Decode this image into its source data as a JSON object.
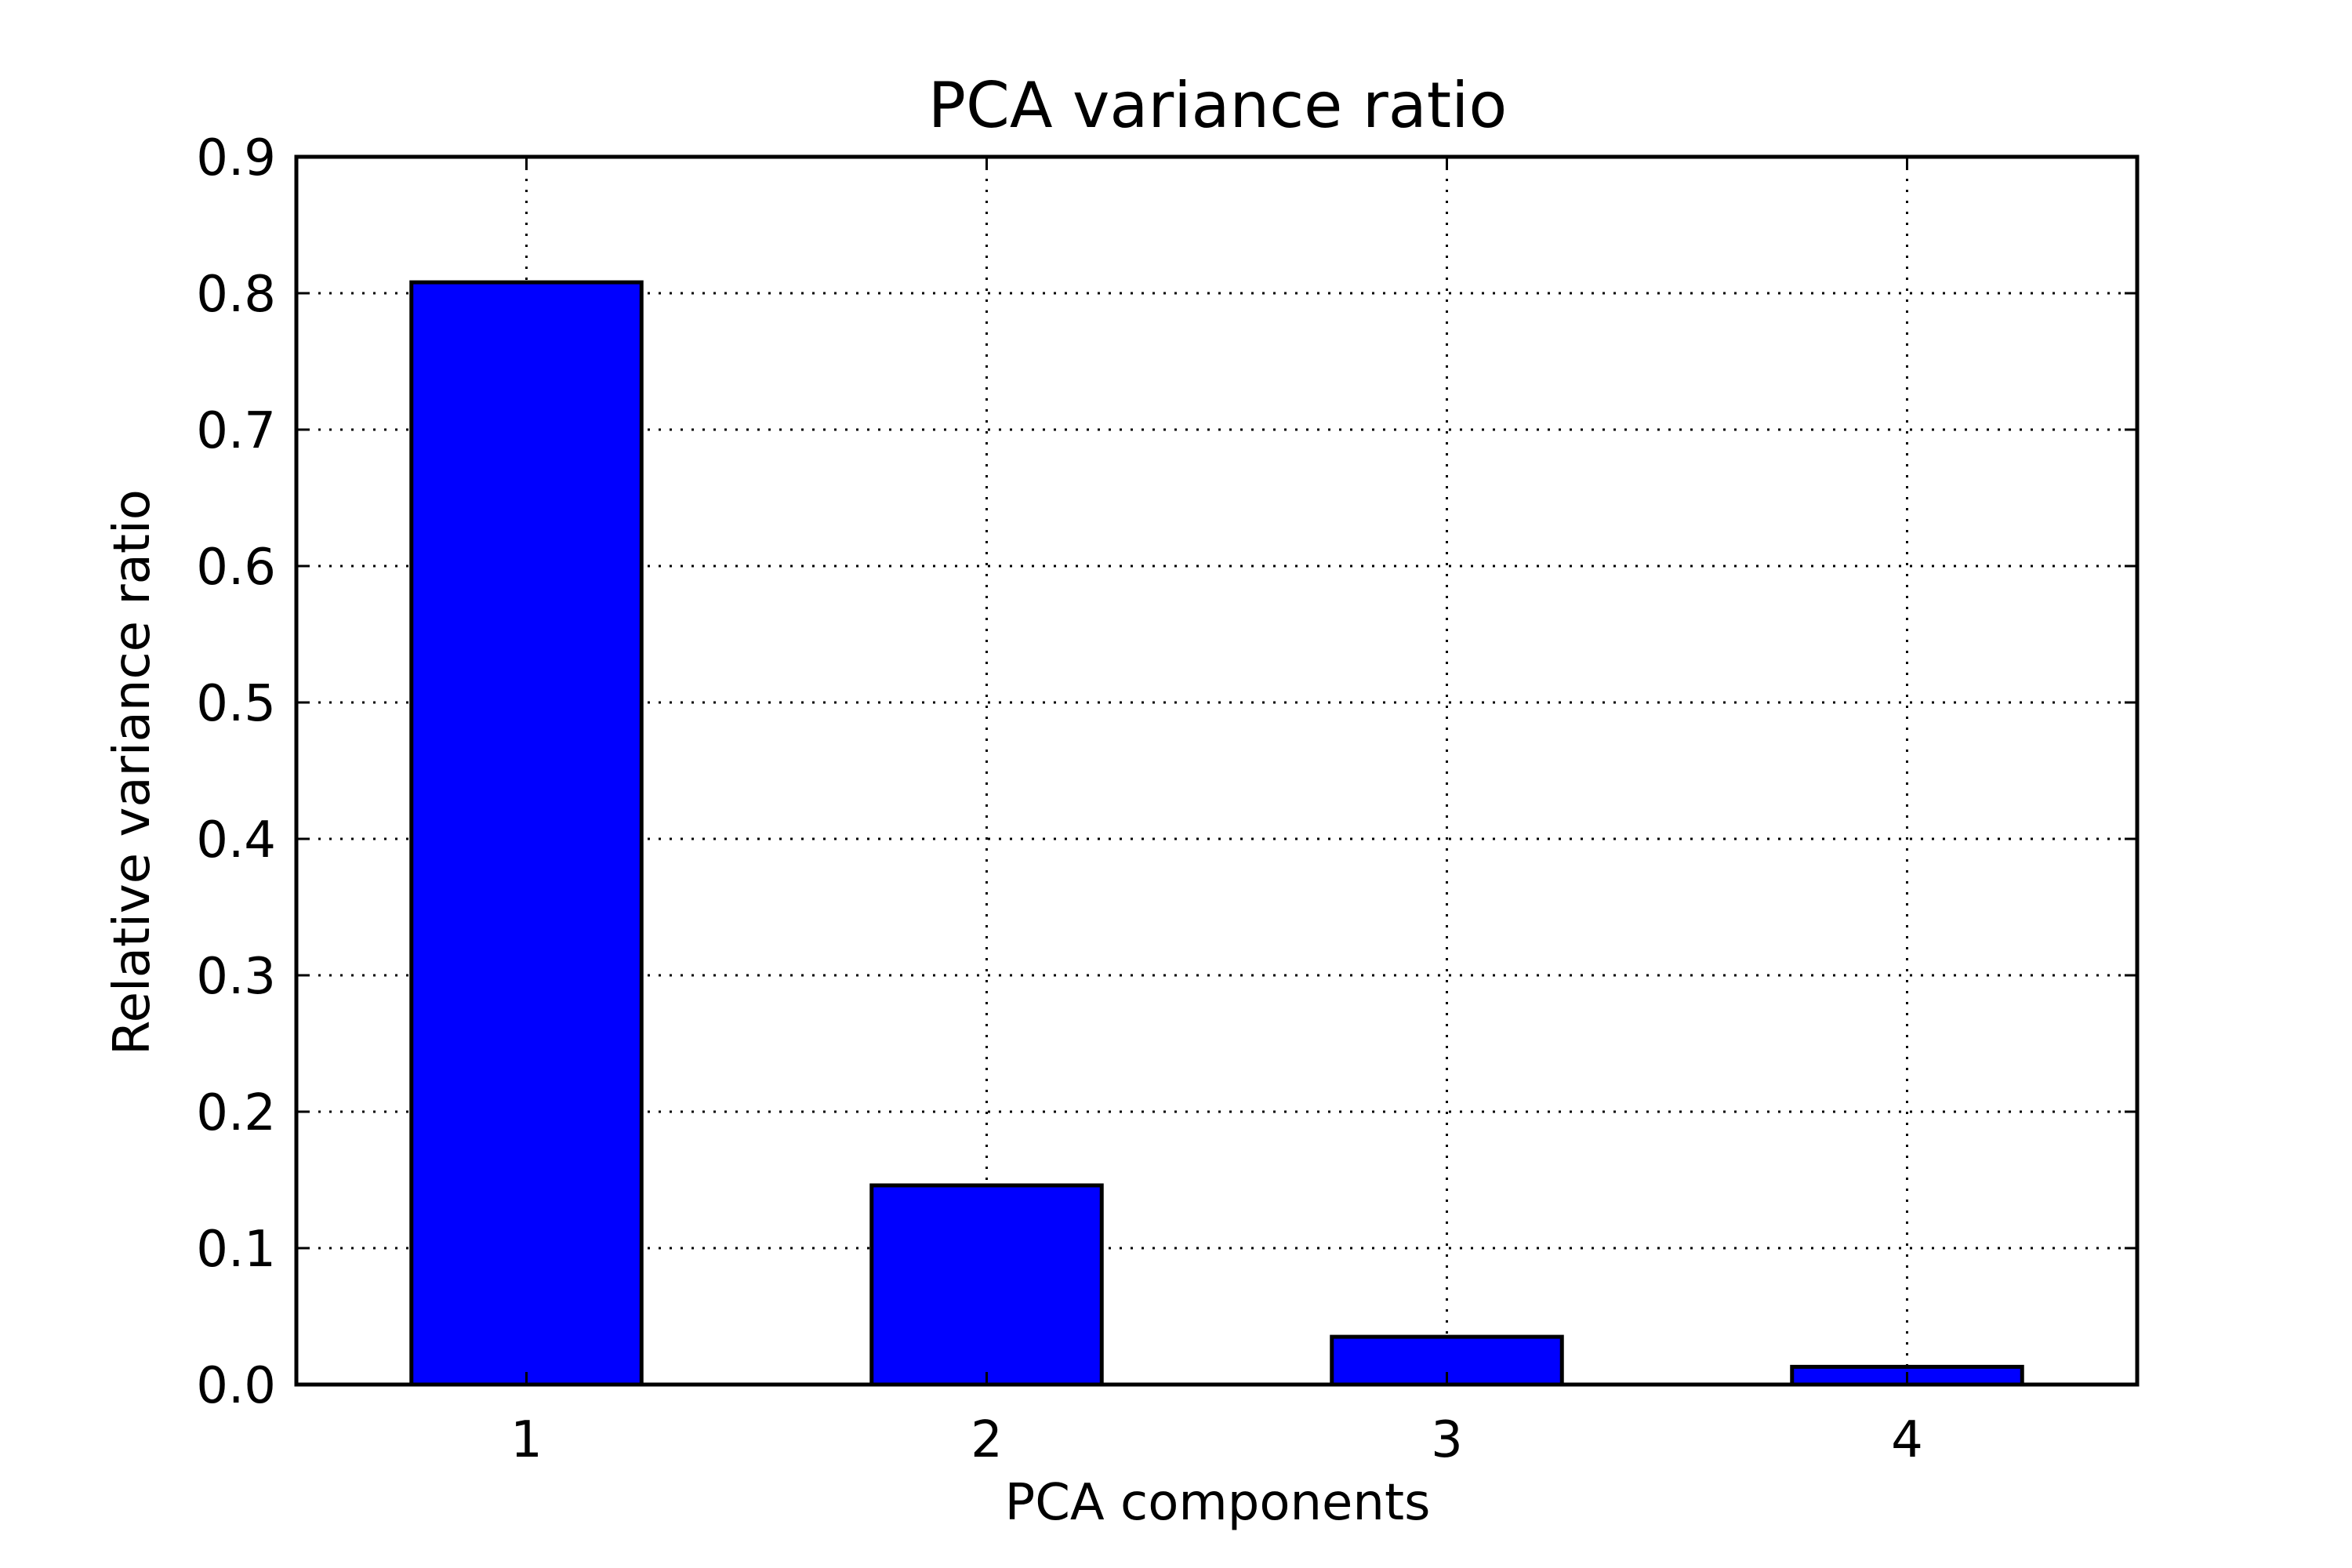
{
  "chart_data": {
    "type": "bar",
    "title": "PCA variance ratio",
    "xlabel": "PCA components",
    "ylabel": "Relative variance ratio",
    "categories": [
      "1",
      "2",
      "3",
      "4"
    ],
    "values": [
      0.808,
      0.146,
      0.035,
      0.013
    ],
    "ylim": [
      0,
      0.9
    ],
    "xlim": [
      0.5,
      4.5
    ],
    "yticks": [
      "0.0",
      "0.1",
      "0.2",
      "0.3",
      "0.4",
      "0.5",
      "0.6",
      "0.7",
      "0.8",
      "0.9"
    ],
    "grid": true,
    "legend": "none",
    "bar_color": "#0000ff"
  }
}
